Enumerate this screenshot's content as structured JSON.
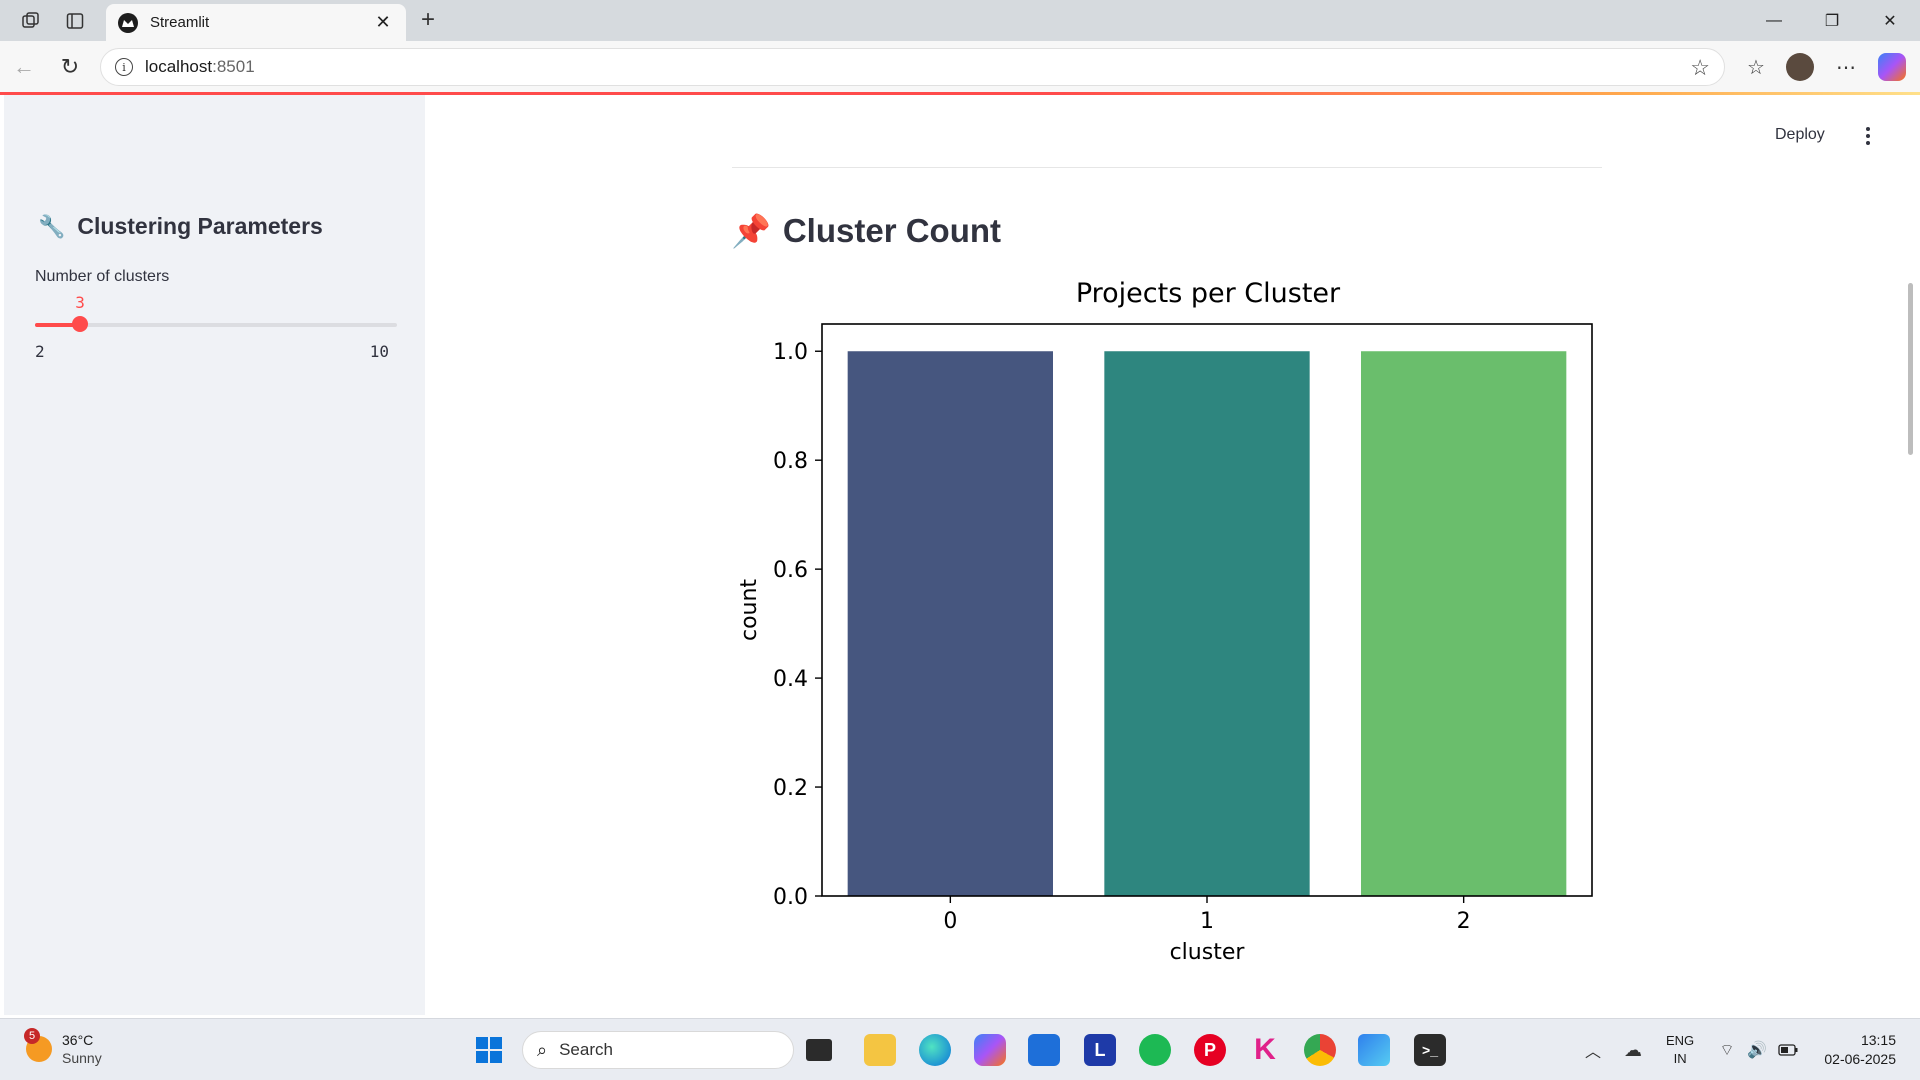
{
  "browser": {
    "tab_title": "Streamlit",
    "url_host": "localhost",
    "url_port": ":8501"
  },
  "sidebar": {
    "title": "Clustering Parameters",
    "slider": {
      "label": "Number of clusters",
      "value": 3,
      "value_text": "3",
      "min": 2,
      "max": 10,
      "min_text": "2",
      "max_text": "10"
    }
  },
  "header": {
    "deploy_label": "Deploy"
  },
  "main": {
    "section_title": "Cluster Count"
  },
  "chart_data": {
    "type": "bar",
    "title": "Projects per Cluster",
    "xlabel": "cluster",
    "ylabel": "count",
    "categories": [
      "0",
      "1",
      "2"
    ],
    "values": [
      1.0,
      1.0,
      1.0
    ],
    "colors": [
      "#46567f",
      "#2e867f",
      "#6abe6c"
    ],
    "ylim": [
      0,
      1.05
    ],
    "yticks": [
      "0.0",
      "0.2",
      "0.4",
      "0.6",
      "0.8",
      "1.0"
    ],
    "grid": false
  },
  "taskbar": {
    "weather_badge": "5",
    "temperature": "36°C",
    "condition": "Sunny",
    "search_placeholder": "Search",
    "lang_top": "ENG",
    "lang_bottom": "IN",
    "time": "13:15",
    "date": "02-06-2025"
  }
}
